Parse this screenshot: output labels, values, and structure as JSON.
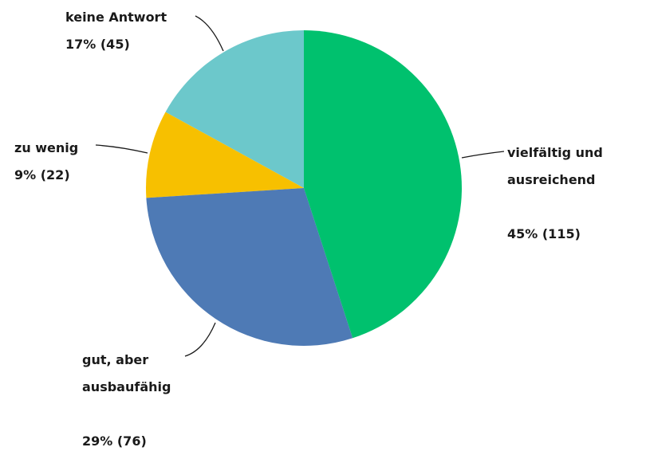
{
  "chart_data": {
    "type": "pie",
    "categories": [
      "vielfältig und ausreichend",
      "gut, aber ausbaufähig",
      "zu wenig",
      "keine Antwort"
    ],
    "values": [
      45,
      29,
      9,
      17
    ],
    "value_labels": [
      "45% (115)",
      "29% (76)",
      "9% (22)",
      "17% (45)"
    ],
    "colors": [
      "#00c16e",
      "#4e7ab5",
      "#f7c000",
      "#6cc8cb"
    ]
  }
}
